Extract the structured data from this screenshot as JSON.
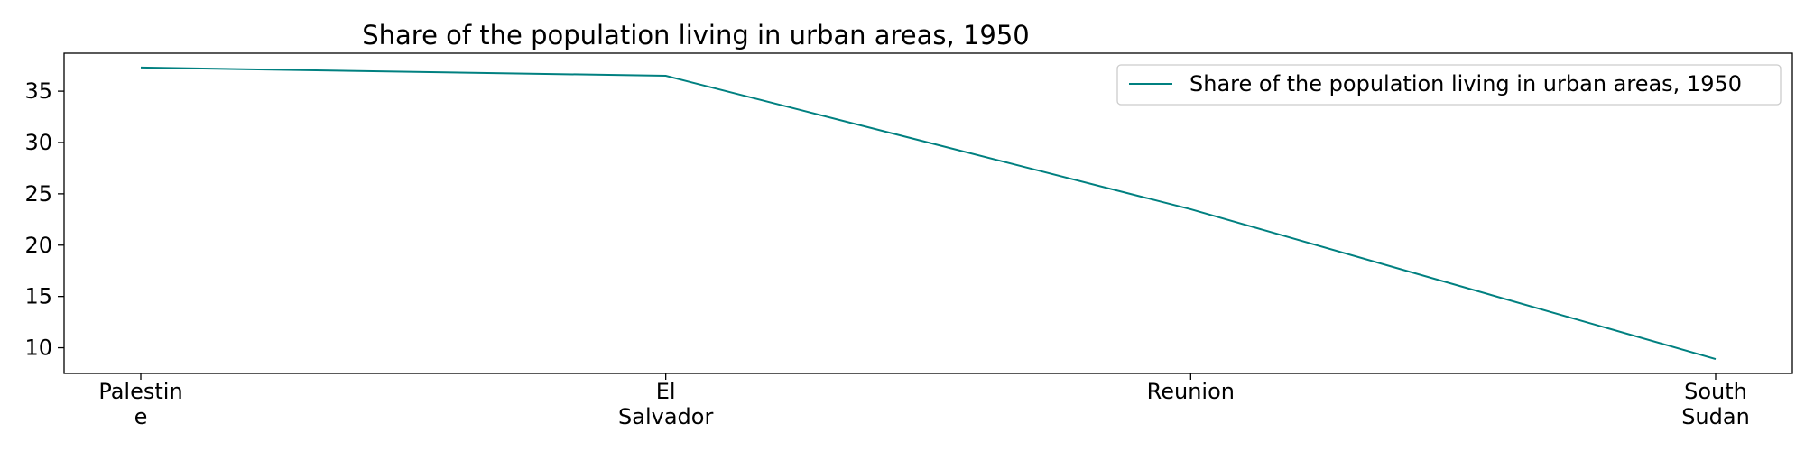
{
  "chart_data": {
    "type": "line",
    "title": "Share of the population living in urban areas, 1950",
    "categories": [
      "Palestine",
      "El Salvador",
      "Reunion",
      "South Sudan"
    ],
    "category_tick_lines": [
      [
        "Palestin",
        "e"
      ],
      [
        "El",
        "Salvador"
      ],
      [
        "Reunion"
      ],
      [
        "South",
        "Sudan"
      ]
    ],
    "series": [
      {
        "name": "Share of the population living in urban areas, 1950",
        "values": [
          37.3,
          36.5,
          23.5,
          8.9
        ],
        "color": "#008080"
      }
    ],
    "yticks": [
      10,
      15,
      20,
      25,
      30,
      35
    ],
    "ylim": [
      7.5,
      38.7
    ],
    "xlabel": "",
    "ylabel": "",
    "grid": false,
    "legend_position": "top-right"
  }
}
